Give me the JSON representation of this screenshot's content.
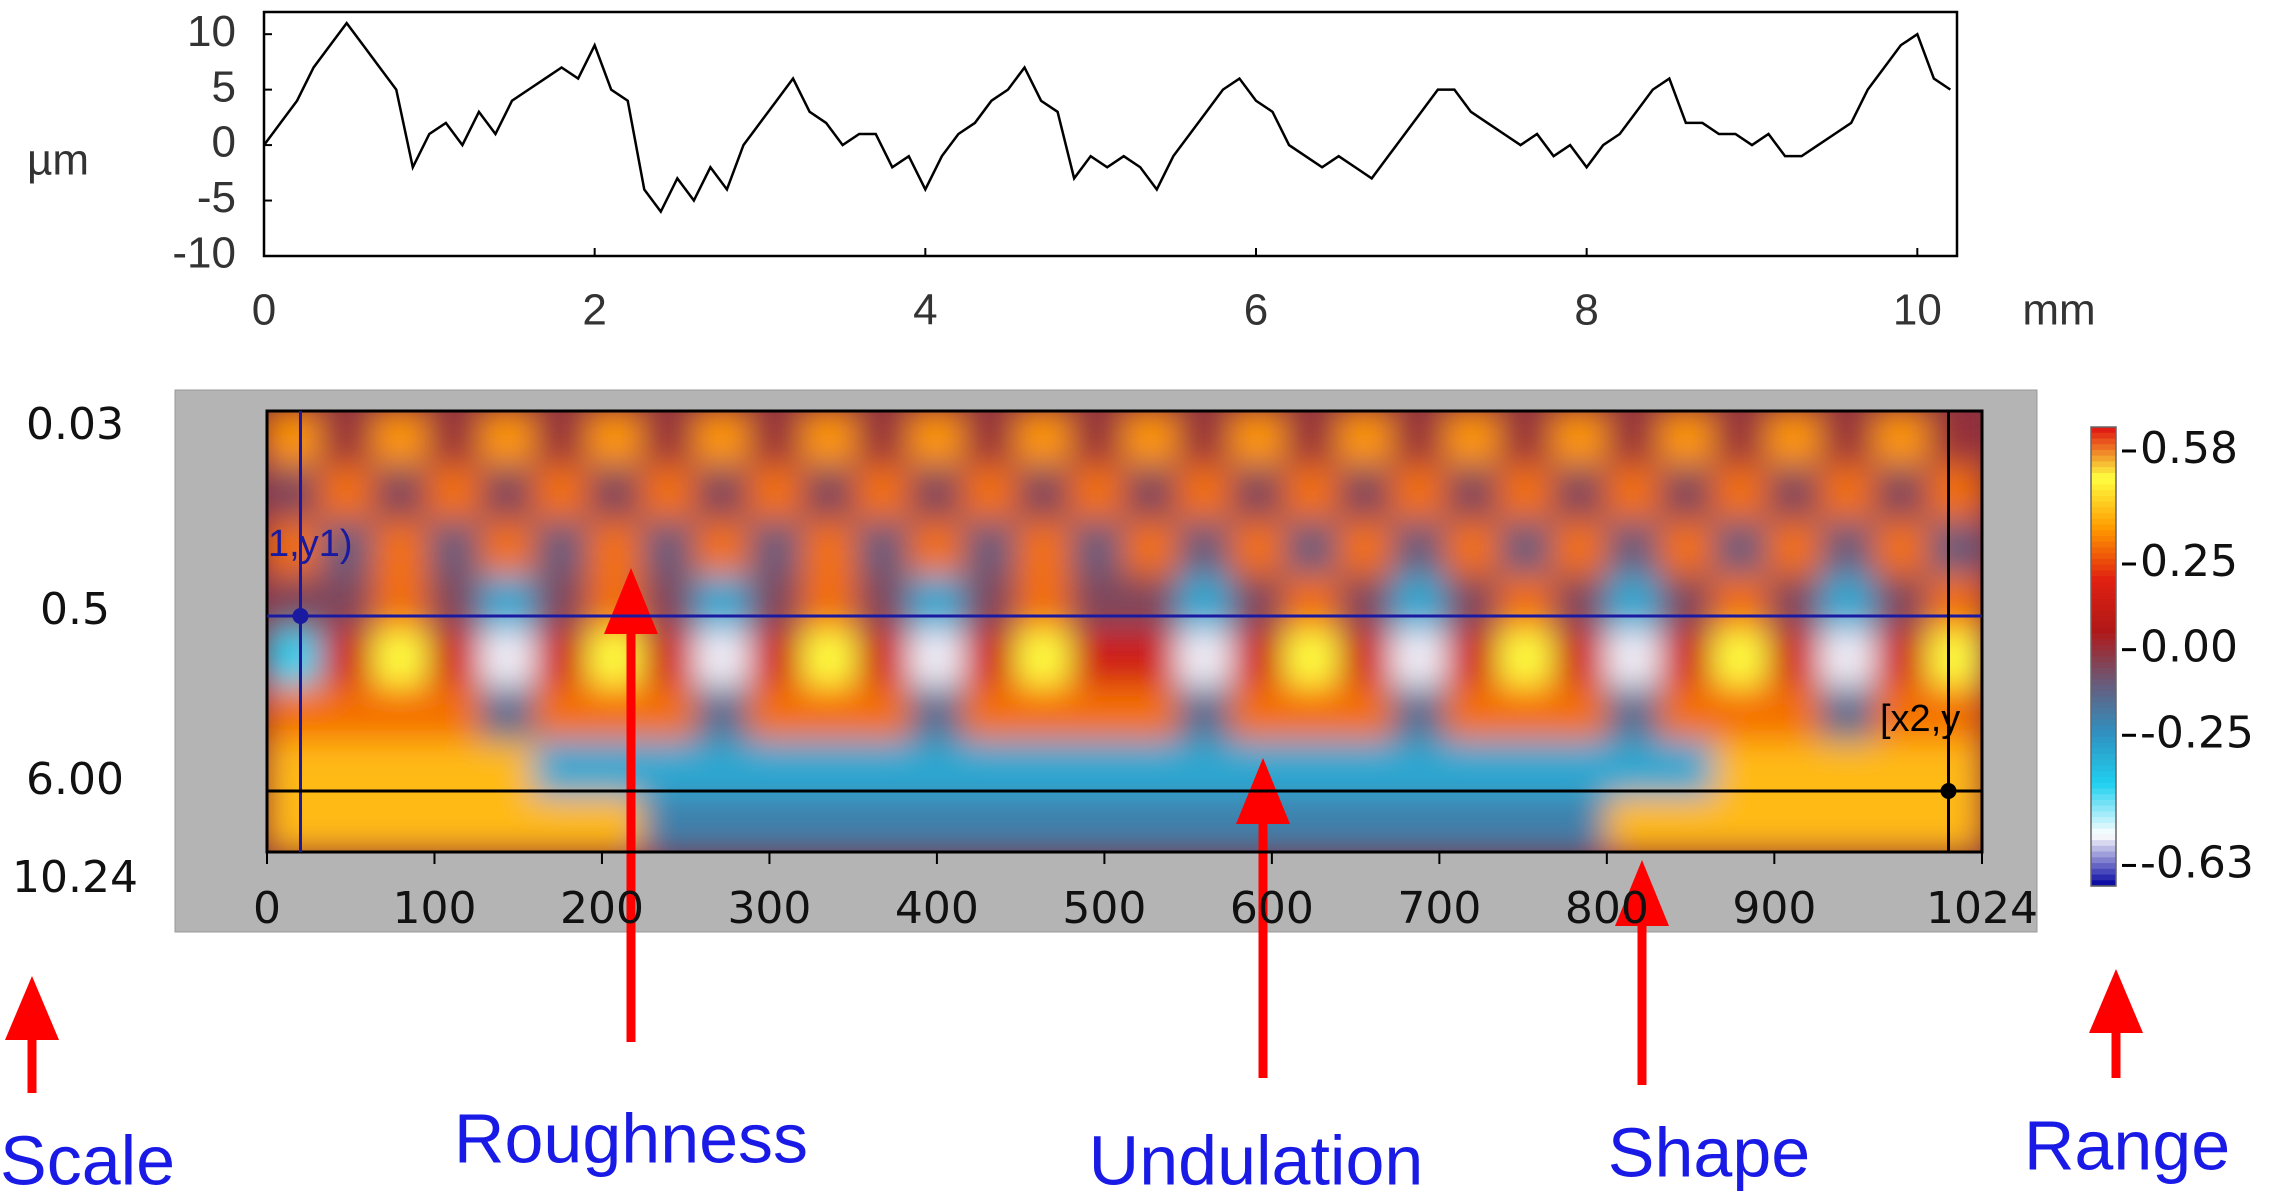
{
  "chart_data": [
    {
      "type": "line",
      "x": [
        0,
        0.1,
        0.2,
        0.3,
        0.4,
        0.5,
        0.6,
        0.7,
        0.8,
        0.9,
        1.0,
        1.1,
        1.2,
        1.3,
        1.4,
        1.5,
        1.6,
        1.7,
        1.8,
        1.9,
        2.0,
        2.1,
        2.2,
        2.3,
        2.4,
        2.5,
        2.6,
        2.7,
        2.8,
        2.9,
        3.0,
        3.1,
        3.2,
        3.3,
        3.4,
        3.5,
        3.6,
        3.7,
        3.8,
        3.9,
        4.0,
        4.1,
        4.2,
        4.3,
        4.4,
        4.5,
        4.6,
        4.7,
        4.8,
        4.9,
        5.0,
        5.1,
        5.2,
        5.3,
        5.4,
        5.5,
        5.6,
        5.7,
        5.8,
        5.9,
        6.0,
        6.1,
        6.2,
        6.3,
        6.4,
        6.5,
        6.6,
        6.7,
        6.8,
        6.9,
        7.0,
        7.1,
        7.2,
        7.3,
        7.4,
        7.5,
        7.6,
        7.7,
        7.8,
        7.9,
        8.0,
        8.1,
        8.2,
        8.3,
        8.4,
        8.5,
        8.6,
        8.7,
        8.8,
        8.9,
        9.0,
        9.1,
        9.2,
        9.3,
        9.4,
        9.5,
        9.6,
        9.7,
        9.8,
        9.9,
        10.0,
        10.1,
        10.2
      ],
      "series": [
        {
          "color": "#000000",
          "values": [
            0,
            2,
            4,
            7,
            9,
            11,
            9,
            7,
            5,
            -2,
            1,
            2,
            0,
            3,
            1,
            4,
            5,
            6,
            7,
            6,
            9,
            5,
            4,
            -4,
            -6,
            -3,
            -5,
            -2,
            -4,
            0,
            2,
            4,
            6,
            3,
            2,
            0,
            1,
            1,
            -2,
            -1,
            -4,
            -1,
            1,
            2,
            4,
            5,
            7,
            4,
            3,
            -3,
            -1,
            -2,
            -1,
            -2,
            -4,
            -1,
            1,
            3,
            5,
            6,
            4,
            3,
            0,
            -1,
            -2,
            -1,
            -2,
            -3,
            -1,
            1,
            3,
            5,
            5,
            3,
            2,
            1,
            0,
            1,
            -1,
            0,
            -2,
            0,
            1,
            3,
            5,
            6,
            2,
            2,
            1,
            1,
            0,
            1,
            -1,
            -1,
            0,
            1,
            2,
            5,
            7,
            9,
            10,
            6,
            5
          ]
        }
      ],
      "xlim": [
        0,
        10.24
      ],
      "xticks": [
        0,
        2,
        4,
        6,
        8,
        10
      ],
      "ylim": [
        -10,
        12
      ],
      "yticks": [
        10,
        5,
        0,
        -5,
        -10
      ],
      "y_label": "µm",
      "x_label": "mm"
    },
    {
      "type": "heatmap",
      "xlim": [
        0,
        1024
      ],
      "xticks": [
        0,
        100,
        200,
        300,
        400,
        500,
        600,
        700,
        800,
        900,
        1024
      ],
      "y_labels": [
        "0.03",
        "0.5",
        "6.00",
        "10.24"
      ],
      "z": [
        [
          0.35,
          0,
          0.35,
          0,
          0.35,
          0,
          0.35,
          0,
          0.35,
          0,
          0.35,
          0,
          0.35,
          0,
          0.35,
          0,
          0.35,
          0,
          0.35,
          0,
          0.35,
          0,
          0.35,
          0,
          0.35,
          0,
          0.35,
          0,
          0.35,
          0,
          0.35,
          0
        ],
        [
          -0.05,
          0.3,
          -0.05,
          0.3,
          -0.05,
          0.3,
          -0.05,
          0.3,
          -0.05,
          0.3,
          -0.05,
          0.3,
          -0.05,
          0.3,
          -0.05,
          0.3,
          -0.05,
          0.3,
          -0.05,
          0.3,
          -0.05,
          0.3,
          -0.05,
          0.3,
          -0.05,
          0.3,
          -0.05,
          0.3,
          -0.05,
          0.3,
          -0.05,
          0.3
        ],
        [
          0.3,
          -0.1,
          0.3,
          -0.1,
          0.3,
          -0.1,
          0.3,
          -0.1,
          0.3,
          -0.1,
          0.3,
          -0.1,
          0.3,
          -0.1,
          0.3,
          -0.1,
          0.3,
          -0.1,
          0.3,
          -0.1,
          0.3,
          -0.1,
          0.3,
          -0.1,
          0.3,
          -0.1,
          0.3,
          -0.1,
          0.3,
          -0.1,
          0.3,
          -0.1
        ],
        [
          -0.05,
          -0.05,
          0.3,
          -0.05,
          -0.3,
          -0.05,
          0.3,
          -0.05,
          -0.3,
          -0.05,
          0.3,
          -0.05,
          -0.3,
          -0.05,
          0.3,
          -0.05,
          -0.05,
          -0.3,
          -0.05,
          0.3,
          -0.05,
          -0.3,
          -0.05,
          0.3,
          -0.05,
          -0.3,
          -0.05,
          0.3,
          -0.05,
          -0.3,
          -0.05,
          0.3
        ],
        [
          -0.4,
          0.15,
          0.5,
          0.15,
          -0.55,
          0.15,
          0.5,
          0.15,
          -0.55,
          0.15,
          0.5,
          0.15,
          -0.55,
          0.15,
          0.5,
          0.15,
          0.15,
          -0.55,
          0.15,
          0.5,
          0.15,
          -0.55,
          0.15,
          0.5,
          0.15,
          -0.55,
          0.15,
          0.5,
          0.15,
          -0.55,
          0.15,
          0.5
        ],
        [
          0.3,
          0.3,
          0.3,
          0.3,
          -0.15,
          0.3,
          0.3,
          0.3,
          -0.15,
          0.3,
          0.3,
          0.3,
          -0.15,
          0.3,
          0.3,
          0.3,
          0.3,
          -0.15,
          0.3,
          0.3,
          0.3,
          -0.15,
          0.3,
          0.3,
          0.3,
          -0.15,
          0.3,
          0.3,
          0.3,
          -0.15,
          0.3,
          0.3
        ],
        [
          0.4,
          0.4,
          0.4,
          0.4,
          0.4,
          -0.3,
          -0.3,
          -0.3,
          -0.3,
          -0.3,
          -0.3,
          -0.3,
          -0.3,
          -0.3,
          -0.3,
          -0.3,
          -0.3,
          -0.3,
          -0.3,
          -0.3,
          -0.3,
          -0.3,
          -0.3,
          -0.3,
          -0.3,
          -0.3,
          -0.3,
          0.4,
          0.4,
          0.4,
          0.4,
          0.4
        ],
        [
          0.4,
          0.4,
          0.4,
          0.4,
          0.4,
          0.4,
          0.4,
          -0.2,
          -0.2,
          -0.2,
          -0.2,
          -0.2,
          -0.2,
          -0.2,
          -0.2,
          -0.2,
          -0.2,
          -0.2,
          -0.2,
          -0.2,
          -0.2,
          -0.2,
          -0.2,
          -0.2,
          -0.2,
          0.4,
          0.4,
          0.4,
          0.4,
          0.4,
          0.4,
          0.4
        ]
      ],
      "zlim": [
        -0.69,
        0.65
      ],
      "colorscale": [
        "#0000a0",
        "#ffffff",
        "#20d0f0",
        "#3090c0",
        "#6a5a78",
        "#b01818",
        "#e02010",
        "#ff9900",
        "#ffff40",
        "#e01010"
      ],
      "colorbar_ticks": [
        0.58,
        0.25,
        {
          "value": 0,
          "label": "0.00"
        },
        -0.25,
        -0.63
      ],
      "cursor_labels": [
        "1,y1)",
        "[x2,y"
      ]
    }
  ],
  "annotations": [
    "Scale",
    "Roughness",
    "Undulation",
    "Shape",
    "Range"
  ]
}
